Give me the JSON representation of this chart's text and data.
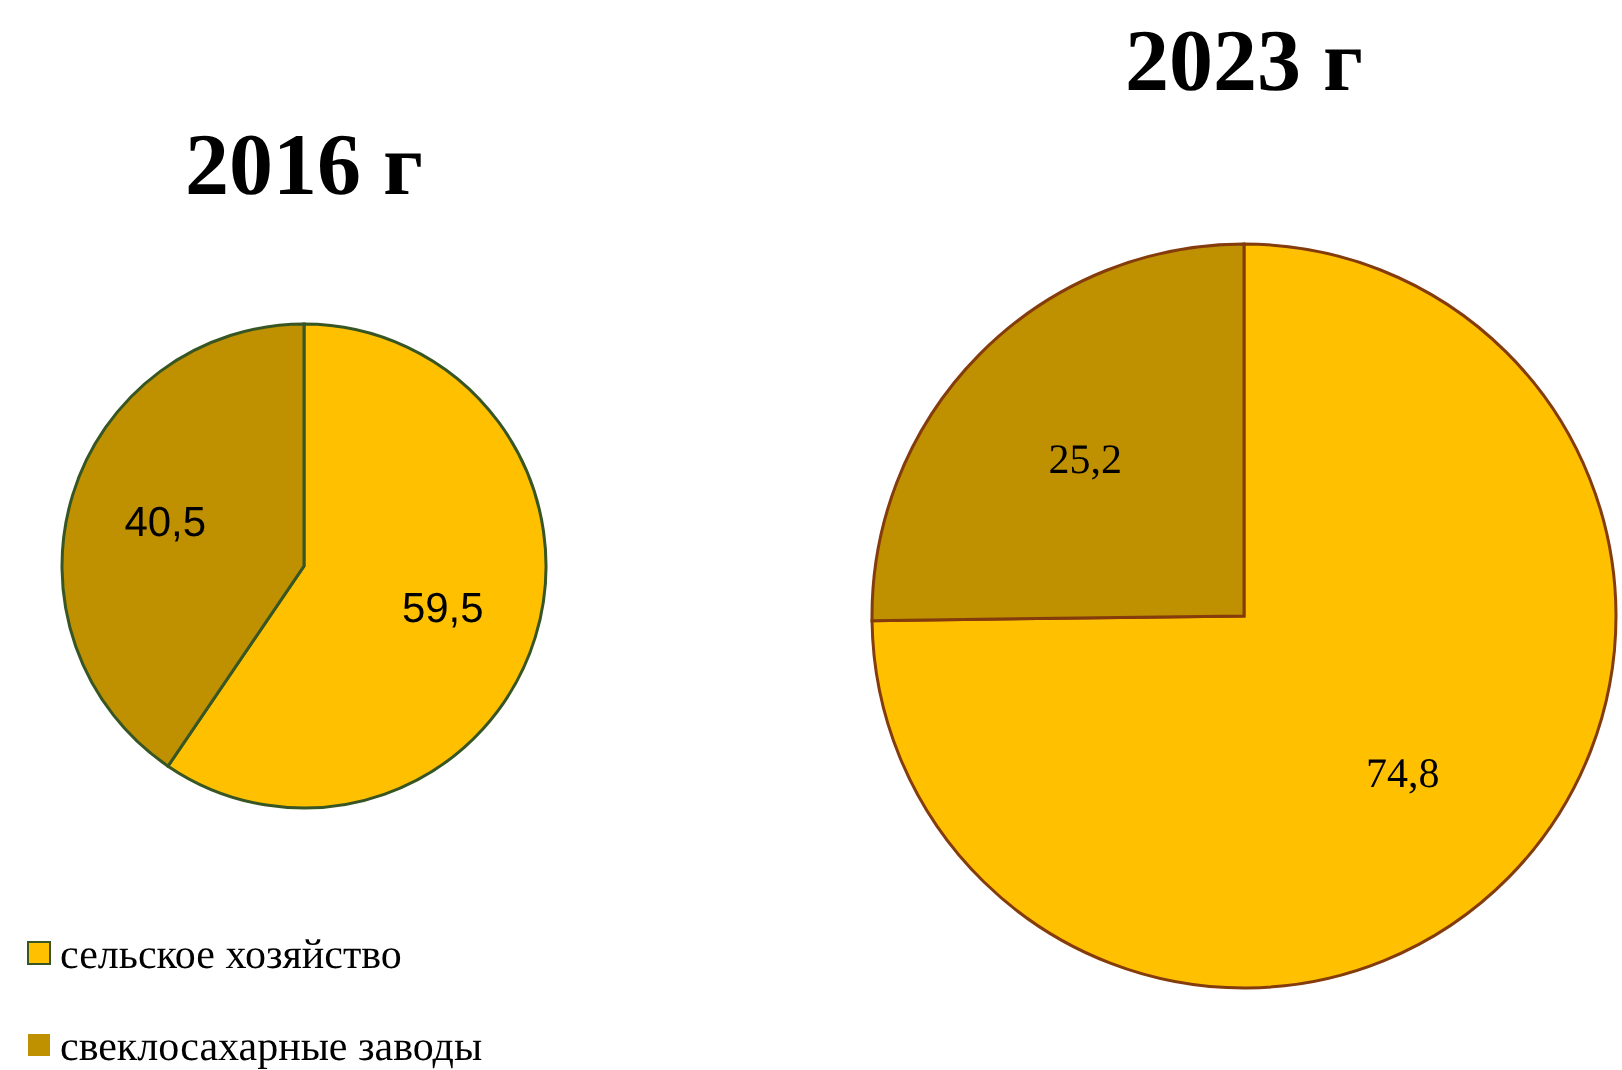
{
  "chart_data": {
    "type": "pie",
    "categories": [
      "сельское хозяйство",
      "свеклосахарные заводы"
    ],
    "legend": "bottom left",
    "series": [
      {
        "name": "2016 г",
        "values": [
          59.5,
          40.5
        ],
        "value_labels": [
          "59,5",
          "40,5"
        ],
        "colors": [
          "#ffc000",
          "#bf9000"
        ]
      },
      {
        "name": "2023 г",
        "values": [
          74.8,
          25.2
        ],
        "value_labels": [
          "74,8",
          "25,2"
        ],
        "colors": [
          "#ffc000",
          "#bf9000"
        ]
      }
    ]
  }
}
